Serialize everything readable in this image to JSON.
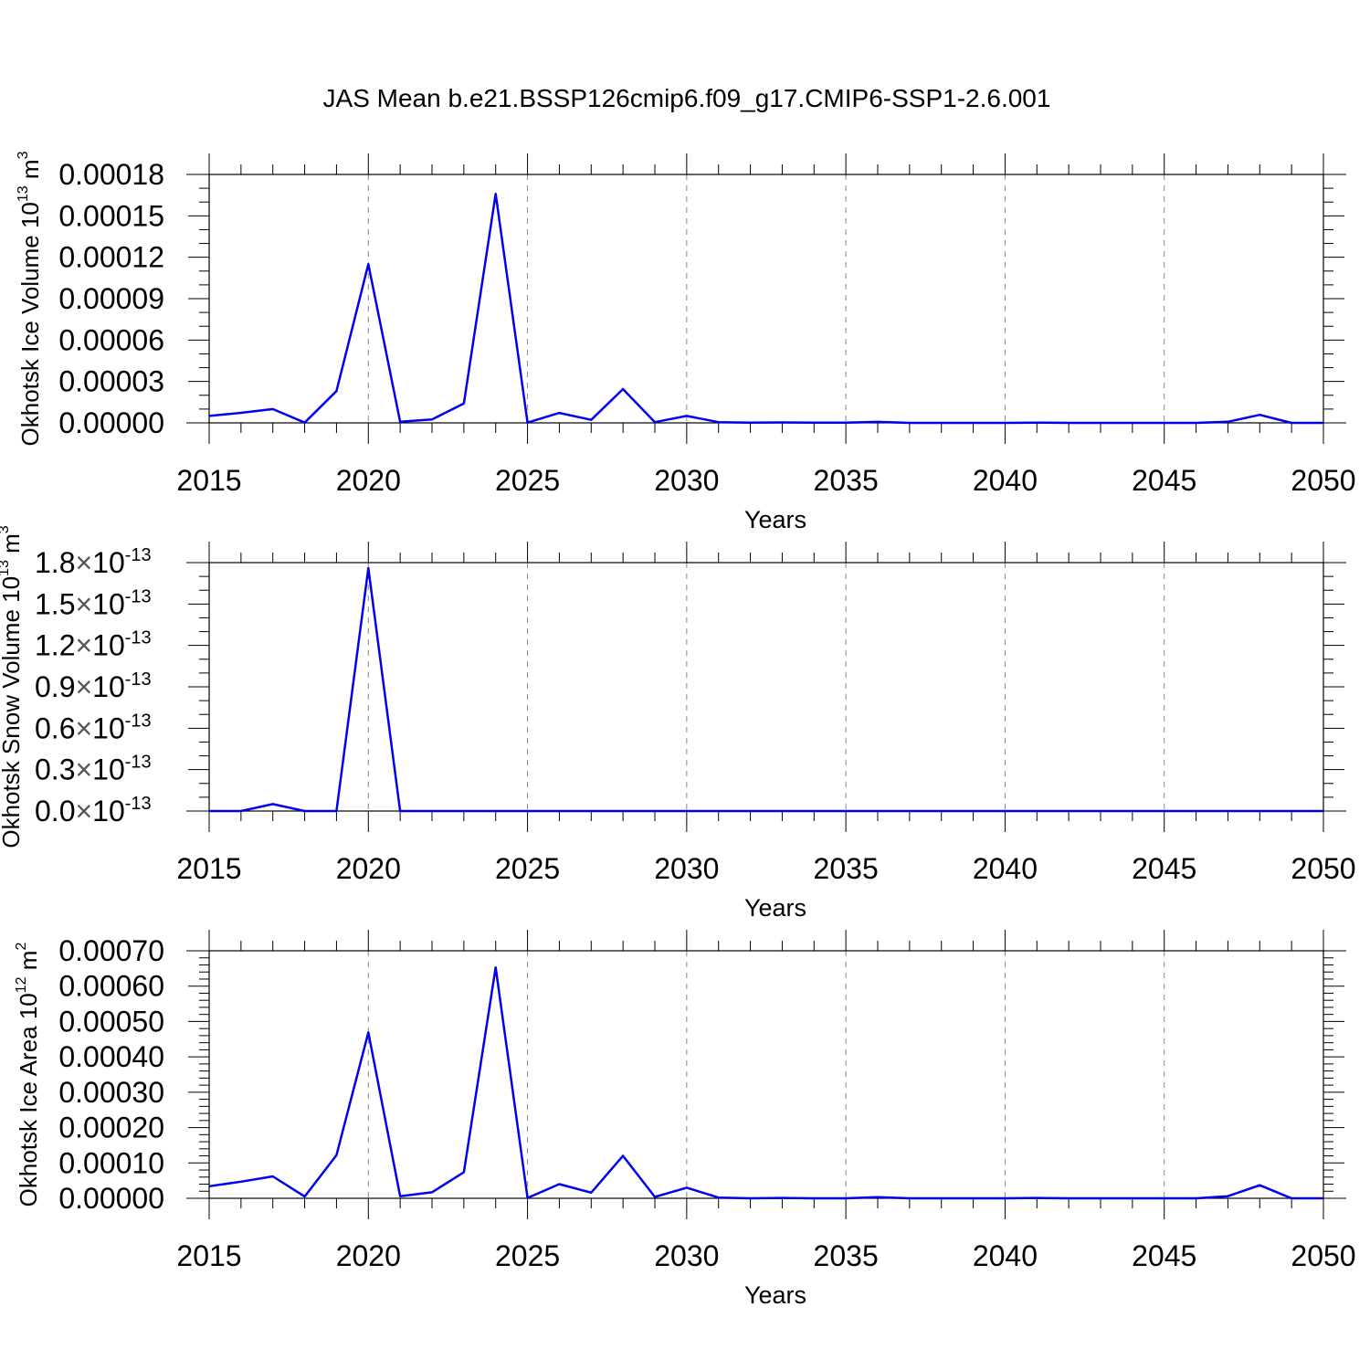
{
  "title": "JAS Mean b.e21.BSSP126cmip6.f09_g17.CMIP6-SSP1-2.6.001",
  "colors": {
    "line": "#0000ee"
  },
  "chart_data": [
    {
      "type": "line",
      "ylabel": "Okhotsk Ice Volume 10",
      "ylabel_sup": "13",
      "ylabel_unit": "m",
      "ylabel_unit_sup": "3",
      "xlabel": "Years",
      "xlim": [
        2015,
        2050
      ],
      "ylim": [
        0,
        0.00018
      ],
      "x_ticks": [
        2015,
        2020,
        2025,
        2030,
        2035,
        2040,
        2045,
        2050
      ],
      "x_tick_labels": [
        "2015",
        "2020",
        "2025",
        "2030",
        "2035",
        "2040",
        "2045",
        "2050"
      ],
      "y_ticks": [
        0,
        3e-05,
        6e-05,
        9e-05,
        0.00012,
        0.00015,
        0.00018
      ],
      "y_tick_labels": [
        "0.00000",
        "0.00003",
        "0.00006",
        "0.00009",
        "0.00012",
        "0.00015",
        "0.00018"
      ],
      "grid": "vertical dashed at major x ticks",
      "x": [
        2015,
        2016,
        2017,
        2018,
        2019,
        2020,
        2021,
        2022,
        2023,
        2024,
        2025,
        2026,
        2027,
        2028,
        2029,
        2030,
        2031,
        2032,
        2033,
        2034,
        2035,
        2036,
        2037,
        2038,
        2039,
        2040,
        2041,
        2042,
        2043,
        2044,
        2045,
        2046,
        2047,
        2048,
        2049,
        2050
      ],
      "values": [
        5e-06,
        7.3e-06,
        1e-05,
        2e-07,
        2.3e-05,
        0.000115,
        8e-07,
        2.5e-06,
        1.4e-05,
        0.000166,
        2e-07,
        7.2e-06,
        2.2e-06,
        2.45e-05,
        5e-07,
        5e-06,
        5e-07,
        1e-07,
        3e-07,
        1e-07,
        1e-07,
        7e-07,
        0,
        0,
        0,
        0,
        2e-07,
        0,
        0,
        0,
        0,
        0,
        8e-07,
        5.8e-06,
        0,
        0
      ]
    },
    {
      "type": "line",
      "ylabel": "Okhotsk Snow Volume 10",
      "ylabel_sup": "13",
      "ylabel_unit": "m",
      "ylabel_unit_sup": "3",
      "xlabel": "Years",
      "xlim": [
        2015,
        2050
      ],
      "ylim": [
        0,
        1.8e-13
      ],
      "x_ticks": [
        2015,
        2020,
        2025,
        2030,
        2035,
        2040,
        2045,
        2050
      ],
      "x_tick_labels": [
        "2015",
        "2020",
        "2025",
        "2030",
        "2035",
        "2040",
        "2045",
        "2050"
      ],
      "y_ticks": [
        0,
        3e-14,
        6e-14,
        9e-14,
        1.2e-13,
        1.5e-13,
        1.8e-13
      ],
      "y_tick_mantissas": [
        "0.0",
        "0.3",
        "0.6",
        "0.9",
        "1.2",
        "1.5",
        "1.8"
      ],
      "y_tick_times": "×10",
      "y_tick_exponent": "-13",
      "grid": "vertical dashed at major x ticks",
      "x": [
        2015,
        2016,
        2017,
        2018,
        2019,
        2020,
        2021,
        2022,
        2023,
        2024,
        2025,
        2026,
        2027,
        2028,
        2029,
        2030,
        2031,
        2032,
        2033,
        2034,
        2035,
        2036,
        2037,
        2038,
        2039,
        2040,
        2041,
        2042,
        2043,
        2044,
        2045,
        2046,
        2047,
        2048,
        2049,
        2050
      ],
      "values": [
        0,
        0,
        5e-15,
        0,
        0,
        1.76e-13,
        0,
        0,
        0,
        0,
        0,
        0,
        0,
        0,
        0,
        0,
        0,
        0,
        0,
        0,
        0,
        0,
        0,
        0,
        0,
        0,
        0,
        0,
        0,
        0,
        0,
        0,
        0,
        0,
        0,
        0
      ]
    },
    {
      "type": "line",
      "ylabel": "Okhotsk Ice Area 10",
      "ylabel_sup": "12",
      "ylabel_unit": "m",
      "ylabel_unit_sup": "2",
      "xlabel": "Years",
      "xlim": [
        2015,
        2050
      ],
      "ylim": [
        0,
        0.0007
      ],
      "x_ticks": [
        2015,
        2020,
        2025,
        2030,
        2035,
        2040,
        2045,
        2050
      ],
      "x_tick_labels": [
        "2015",
        "2020",
        "2025",
        "2030",
        "2035",
        "2040",
        "2045",
        "2050"
      ],
      "y_ticks": [
        0,
        0.0001,
        0.0002,
        0.0003,
        0.0004,
        0.0005,
        0.0006,
        0.0007
      ],
      "y_tick_labels": [
        "0.00000",
        "0.00010",
        "0.00020",
        "0.00030",
        "0.00040",
        "0.00050",
        "0.00060",
        "0.00070"
      ],
      "grid": "vertical dashed at major x ticks",
      "x": [
        2015,
        2016,
        2017,
        2018,
        2019,
        2020,
        2021,
        2022,
        2023,
        2024,
        2025,
        2026,
        2027,
        2028,
        2029,
        2030,
        2031,
        2032,
        2033,
        2034,
        2035,
        2036,
        2037,
        2038,
        2039,
        2040,
        2041,
        2042,
        2043,
        2044,
        2045,
        2046,
        2047,
        2048,
        2049,
        2050
      ],
      "values": [
        3.4e-05,
        4.7e-05,
        6.2e-05,
        5e-06,
        0.000122,
        0.000469,
        6e-06,
        1.7e-05,
        7.4e-05,
        0.000653,
        1e-06,
        4e-05,
        1.6e-05,
        0.00012,
        4e-06,
        3e-05,
        2e-06,
        0,
        1e-06,
        0,
        0,
        3e-06,
        0,
        0,
        0,
        0,
        1e-06,
        0,
        0,
        0,
        0,
        0,
        6e-06,
        3.7e-05,
        0,
        0
      ]
    }
  ]
}
